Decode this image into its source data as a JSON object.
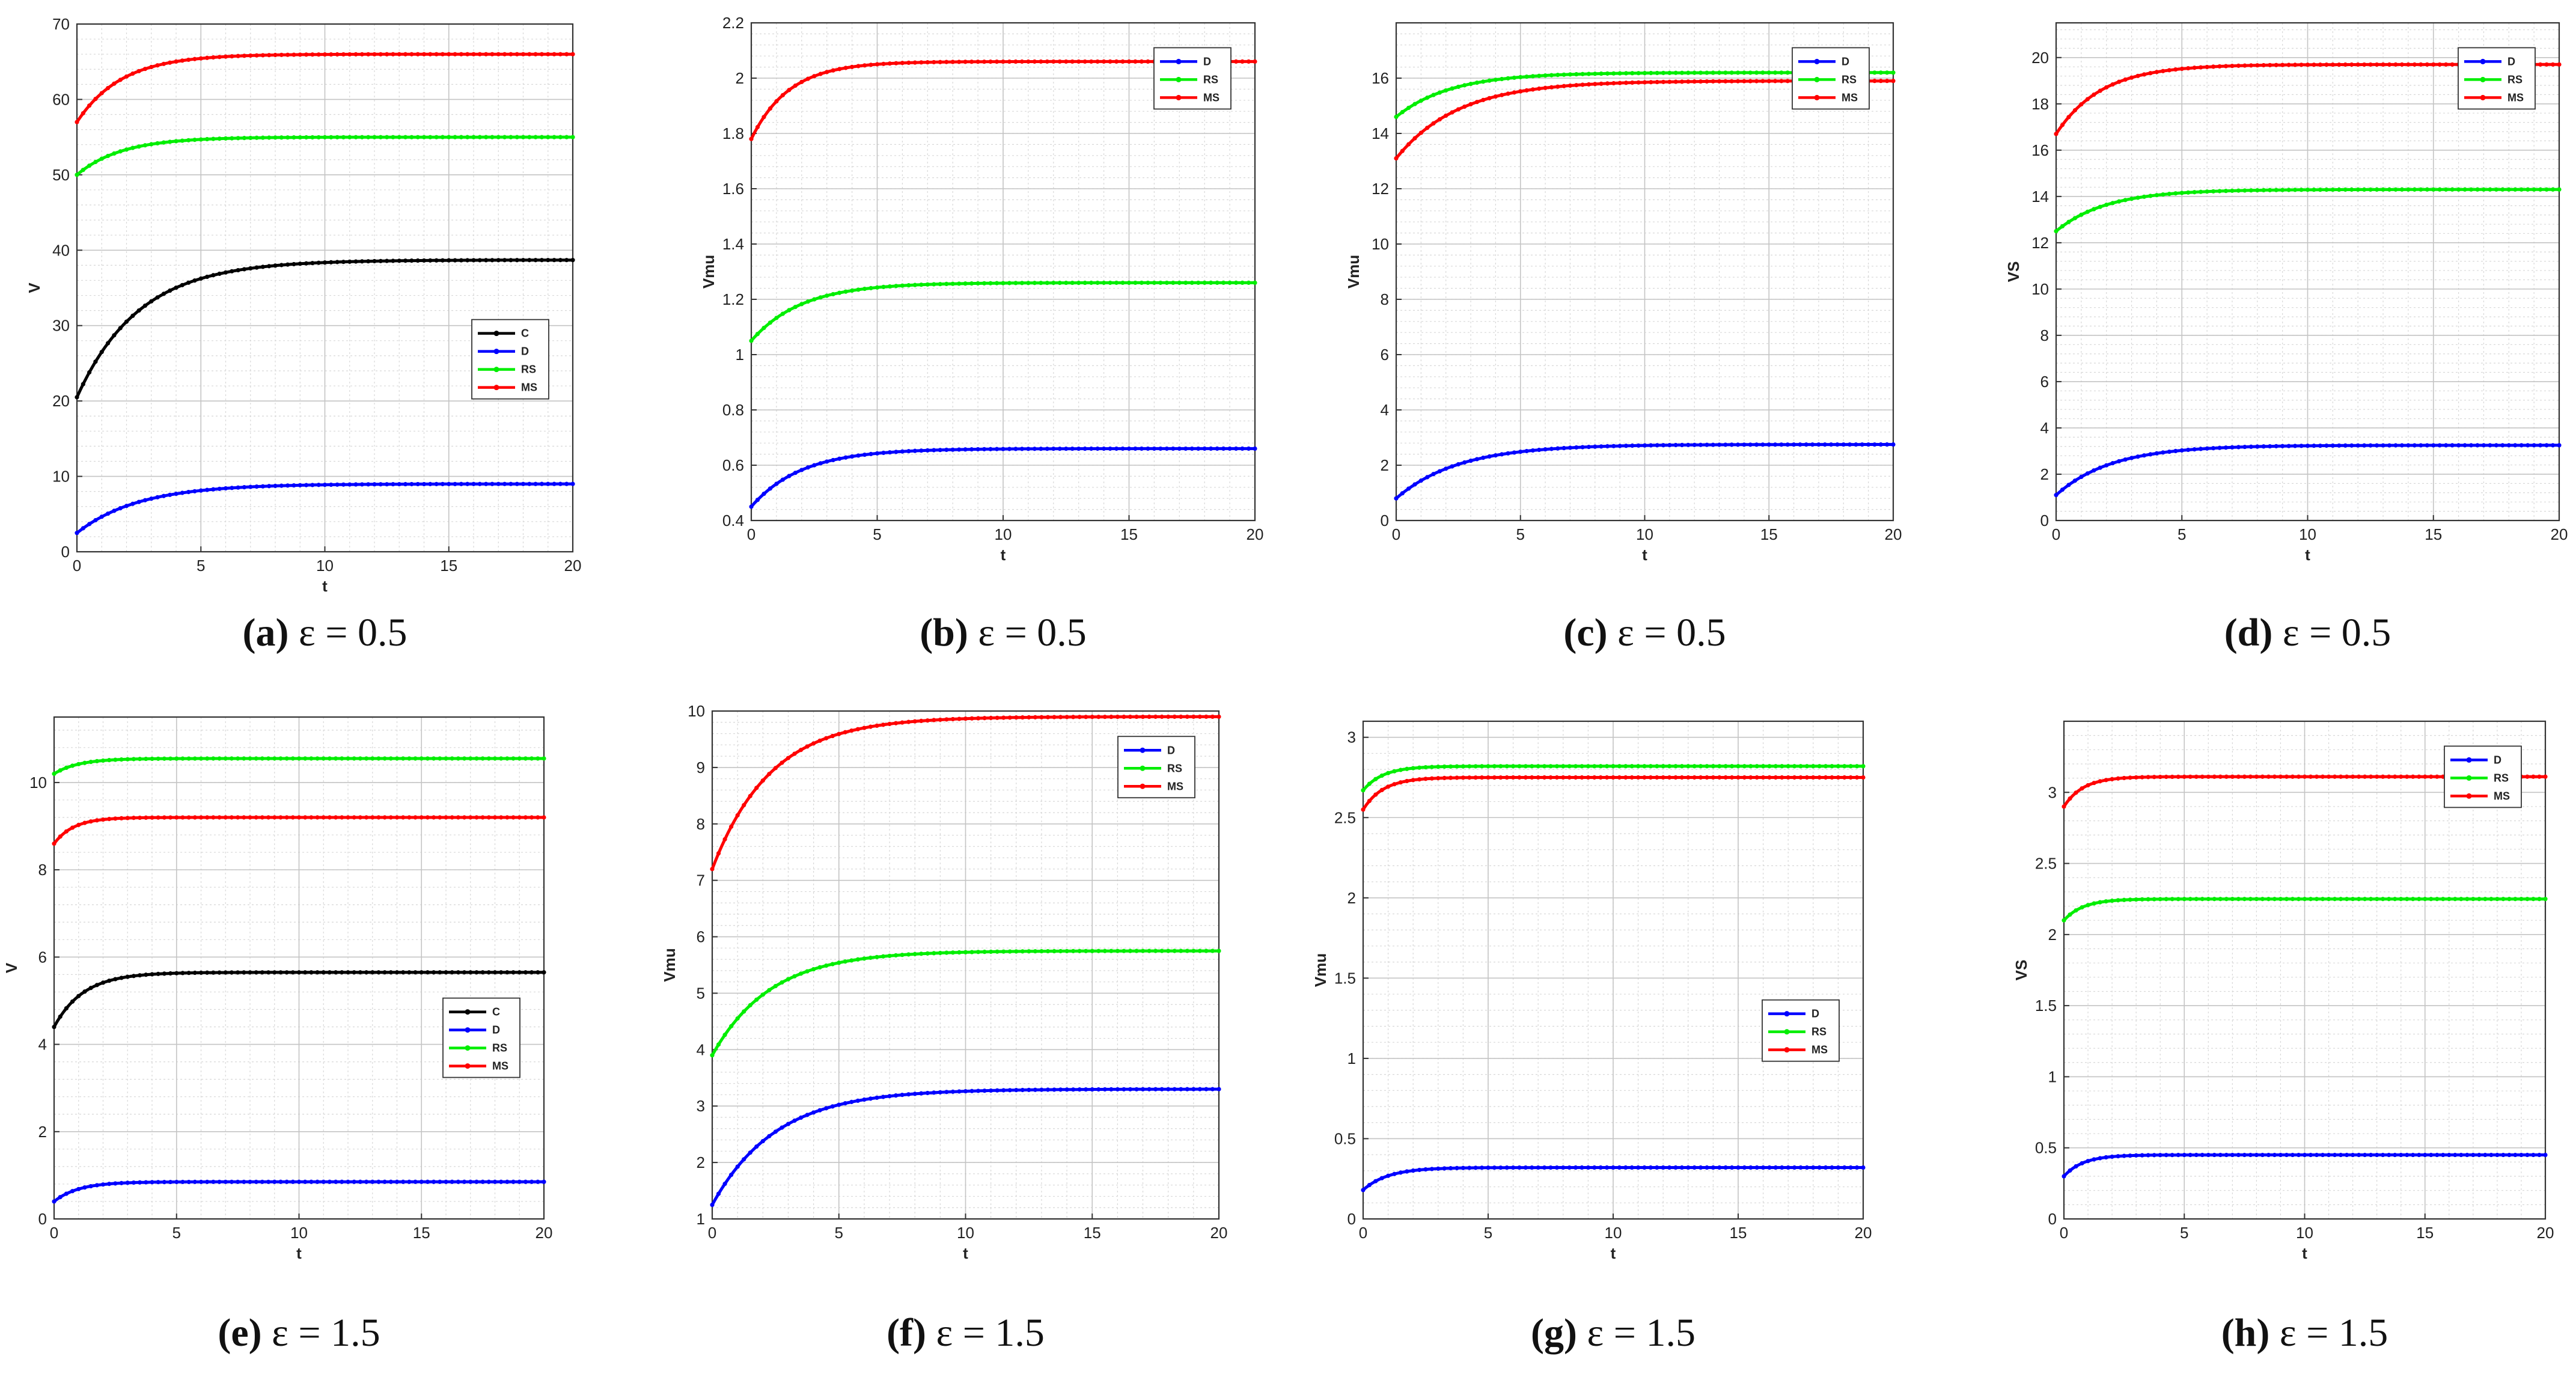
{
  "colors": {
    "C": "#000000",
    "D": "#0000ff",
    "RS": "#00ee00",
    "MS": "#ff0000"
  },
  "chart_data": [
    {
      "type": "line",
      "caption_letter": "(a)",
      "caption_text": " ε = 0.5",
      "ylabel": "V",
      "xlabel": "t",
      "xlim": [
        0,
        20
      ],
      "ylim": [
        0,
        70
      ],
      "xticks": [
        0,
        5,
        10,
        15,
        20
      ],
      "yticks": [
        0,
        10,
        20,
        30,
        40,
        50,
        60,
        70
      ],
      "ytick_labels": [
        "0",
        "10",
        "20",
        "30",
        "40",
        "50",
        "60",
        "70"
      ],
      "legend_pos": "middle-right",
      "series": [
        {
          "name": "C",
          "start": 20.5,
          "end": 38.7,
          "tau": 2.5
        },
        {
          "name": "D",
          "start": 2.5,
          "end": 9.0,
          "tau": 2.5
        },
        {
          "name": "RS",
          "start": 50.0,
          "end": 55.0,
          "tau": 1.8
        },
        {
          "name": "MS",
          "start": 57.0,
          "end": 66.0,
          "tau": 1.8
        }
      ]
    },
    {
      "type": "line",
      "caption_letter": "(b)",
      "caption_text": " ε = 0.5",
      "ylabel": "Vmu",
      "xlabel": "t",
      "xlim": [
        0,
        20
      ],
      "ylim": [
        0.4,
        2.2
      ],
      "xticks": [
        0,
        5,
        10,
        15,
        20
      ],
      "yticks": [
        0.4,
        0.6,
        0.8,
        1.0,
        1.2,
        1.4,
        1.6,
        1.8,
        2.0,
        2.2
      ],
      "ytick_labels": [
        "0.4",
        "0.6",
        "0.8",
        "1",
        "1.2",
        "1.4",
        "1.6",
        "1.8",
        "2",
        "2.2"
      ],
      "legend_pos": "top-right",
      "series": [
        {
          "name": "D",
          "start": 0.45,
          "end": 0.66,
          "tau": 2.0
        },
        {
          "name": "RS",
          "start": 1.05,
          "end": 1.26,
          "tau": 2.0
        },
        {
          "name": "MS",
          "start": 1.78,
          "end": 2.06,
          "tau": 1.5
        }
      ]
    },
    {
      "type": "line",
      "caption_letter": "(c)",
      "caption_text": " ε = 0.5",
      "ylabel": "Vmu",
      "xlabel": "t",
      "xlim": [
        0,
        20
      ],
      "ylim": [
        0,
        18
      ],
      "xticks": [
        0,
        5,
        10,
        15,
        20
      ],
      "yticks": [
        0,
        2,
        4,
        6,
        8,
        10,
        12,
        14,
        16
      ],
      "ytick_labels": [
        "0",
        "2",
        "4",
        "6",
        "8",
        "10",
        "12",
        "14",
        "16"
      ],
      "legend_pos": "top-right",
      "series": [
        {
          "name": "D",
          "start": 0.8,
          "end": 2.75,
          "tau": 2.5
        },
        {
          "name": "RS",
          "start": 14.6,
          "end": 16.2,
          "tau": 2.2
        },
        {
          "name": "MS",
          "start": 13.1,
          "end": 15.9,
          "tau": 2.5
        }
      ]
    },
    {
      "type": "line",
      "caption_letter": "(d)",
      "caption_text": " ε = 0.5",
      "ylabel": "VS",
      "xlabel": "t",
      "xlim": [
        0,
        20
      ],
      "ylim": [
        0,
        21.5
      ],
      "xticks": [
        0,
        5,
        10,
        15,
        20
      ],
      "yticks": [
        0,
        2,
        4,
        6,
        8,
        10,
        12,
        14,
        16,
        18,
        20
      ],
      "ytick_labels": [
        "0",
        "2",
        "4",
        "6",
        "8",
        "10",
        "12",
        "14",
        "16",
        "18",
        "20"
      ],
      "legend_pos": "top-right",
      "series": [
        {
          "name": "D",
          "start": 1.1,
          "end": 3.25,
          "tau": 2.2
        },
        {
          "name": "RS",
          "start": 12.5,
          "end": 14.3,
          "tau": 2.0
        },
        {
          "name": "MS",
          "start": 16.7,
          "end": 19.7,
          "tau": 1.8
        }
      ]
    },
    {
      "type": "line",
      "caption_letter": "(e)",
      "caption_text": " ε = 1.5",
      "ylabel": "V",
      "xlabel": "t",
      "xlim": [
        0,
        20
      ],
      "ylim": [
        0,
        11.5
      ],
      "xticks": [
        0,
        5,
        10,
        15,
        20
      ],
      "yticks": [
        0,
        2,
        4,
        6,
        8,
        10
      ],
      "ytick_labels": [
        "0",
        "2",
        "4",
        "6",
        "8",
        "10"
      ],
      "legend_pos": "middle-right",
      "series": [
        {
          "name": "C",
          "start": 4.4,
          "end": 5.65,
          "tau": 1.2
        },
        {
          "name": "D",
          "start": 0.4,
          "end": 0.85,
          "tau": 1.0
        },
        {
          "name": "RS",
          "start": 10.2,
          "end": 10.55,
          "tau": 1.0
        },
        {
          "name": "MS",
          "start": 8.6,
          "end": 9.2,
          "tau": 0.8
        }
      ]
    },
    {
      "type": "line",
      "caption_letter": "(f)",
      "caption_text": " ε = 1.5",
      "ylabel": "Vmu",
      "xlabel": "t",
      "xlim": [
        0,
        20
      ],
      "ylim": [
        1,
        10
      ],
      "xticks": [
        0,
        5,
        10,
        15,
        20
      ],
      "yticks": [
        1,
        2,
        3,
        4,
        5,
        6,
        7,
        8,
        9,
        10
      ],
      "ytick_labels": [
        "1",
        "2",
        "3",
        "4",
        "5",
        "6",
        "7",
        "8",
        "9",
        "10"
      ],
      "legend_pos": "top-right",
      "series": [
        {
          "name": "D",
          "start": 1.25,
          "end": 3.3,
          "tau": 2.5
        },
        {
          "name": "RS",
          "start": 3.9,
          "end": 5.75,
          "tau": 2.3
        },
        {
          "name": "MS",
          "start": 7.2,
          "end": 9.9,
          "tau": 2.3
        }
      ]
    },
    {
      "type": "line",
      "caption_letter": "(g)",
      "caption_text": " ε = 1.5",
      "ylabel": "Vmu",
      "xlabel": "t",
      "xlim": [
        0,
        20
      ],
      "ylim": [
        0,
        3.1
      ],
      "xticks": [
        0,
        5,
        10,
        15,
        20
      ],
      "yticks": [
        0,
        0.5,
        1,
        1.5,
        2,
        2.5,
        3
      ],
      "ytick_labels": [
        "0",
        "0.5",
        "1",
        "1.5",
        "2",
        "2.5",
        "3"
      ],
      "legend_pos": "middle-right",
      "series": [
        {
          "name": "D",
          "start": 0.18,
          "end": 0.32,
          "tau": 1.0
        },
        {
          "name": "RS",
          "start": 2.67,
          "end": 2.82,
          "tau": 0.8
        },
        {
          "name": "MS",
          "start": 2.55,
          "end": 2.75,
          "tau": 0.8
        }
      ]
    },
    {
      "type": "line",
      "caption_letter": "(h)",
      "caption_text": " ε = 1.5",
      "ylabel": "VS",
      "xlabel": "t",
      "xlim": [
        0,
        20
      ],
      "ylim": [
        0,
        3.5
      ],
      "xticks": [
        0,
        5,
        10,
        15,
        20
      ],
      "yticks": [
        0,
        0.5,
        1,
        1.5,
        2,
        2.5,
        3
      ],
      "ytick_labels": [
        "0",
        "0.5",
        "1",
        "1.5",
        "2",
        "2.5",
        "3"
      ],
      "legend_pos": "top-right",
      "series": [
        {
          "name": "D",
          "start": 0.3,
          "end": 0.45,
          "tau": 0.8
        },
        {
          "name": "RS",
          "start": 2.1,
          "end": 2.25,
          "tau": 0.8
        },
        {
          "name": "MS",
          "start": 2.9,
          "end": 3.11,
          "tau": 0.8
        }
      ]
    }
  ]
}
